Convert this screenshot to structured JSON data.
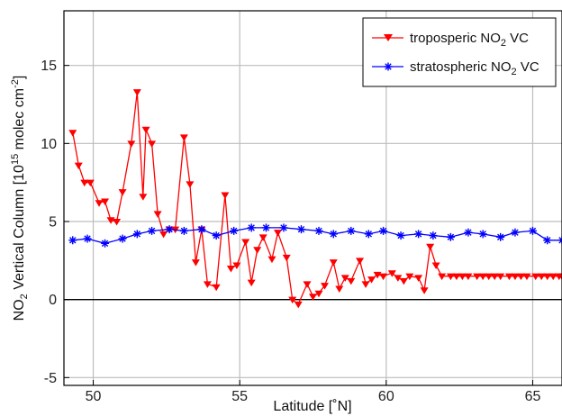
{
  "chart_data": {
    "type": "line",
    "title": "",
    "xlabel": "Latitude [˚N]",
    "ylabel": "NO2 Vertical Column [10^15 molec cm-2]",
    "xlim": [
      49,
      66
    ],
    "ylim": [
      -5.5,
      18.5
    ],
    "x_ticks": [
      50,
      55,
      60,
      65
    ],
    "y_ticks": [
      -5,
      0,
      5,
      10,
      15
    ],
    "grid": true,
    "zero_line": true,
    "legend_position": "top-right",
    "series": [
      {
        "name": "tropospheric NO2 VC",
        "color": "#ff0000",
        "marker": "triangle-down",
        "x": [
          49.3,
          49.5,
          49.7,
          49.9,
          50.2,
          50.4,
          50.6,
          50.8,
          51.0,
          51.3,
          51.5,
          51.7,
          51.8,
          52.0,
          52.2,
          52.4,
          52.6,
          52.8,
          53.1,
          53.3,
          53.5,
          53.7,
          53.9,
          54.2,
          54.5,
          54.7,
          54.9,
          55.2,
          55.4,
          55.6,
          55.8,
          56.1,
          56.3,
          56.6,
          56.8,
          57.0,
          57.3,
          57.5,
          57.7,
          57.9,
          58.2,
          58.4,
          58.6,
          58.8,
          59.1,
          59.3,
          59.5,
          59.7,
          59.9,
          60.2,
          60.4,
          60.6,
          60.8,
          61.1,
          61.3,
          61.5,
          61.7,
          61.9,
          62.2,
          62.4,
          62.6,
          62.8,
          63.1,
          63.3,
          63.5,
          63.7,
          63.9,
          64.2,
          64.4,
          64.6,
          64.8,
          65.1,
          65.3,
          65.5,
          65.7,
          65.9,
          66.0
        ],
        "y": [
          10.7,
          8.6,
          7.5,
          7.5,
          6.2,
          6.3,
          5.1,
          5.0,
          6.9,
          10.0,
          13.3,
          6.6,
          10.9,
          10.0,
          5.5,
          4.2,
          4.5,
          4.5,
          10.4,
          7.4,
          2.4,
          4.5,
          1.0,
          0.8,
          6.7,
          2.0,
          2.2,
          3.7,
          1.1,
          3.2,
          4.0,
          2.6,
          4.3,
          2.7,
          0.0,
          -0.3,
          1.0,
          0.2,
          0.4,
          0.9,
          2.4,
          0.7,
          1.4,
          1.2,
          2.5,
          1.0,
          1.3,
          1.6,
          1.5,
          1.7,
          1.4,
          1.2,
          1.5,
          1.4,
          0.6,
          3.4,
          2.2,
          1.5,
          1.5,
          1.5,
          1.5,
          1.5,
          1.5,
          1.5,
          1.5,
          1.5,
          1.5,
          1.5,
          1.5,
          1.5,
          1.5,
          1.5,
          1.5,
          1.5,
          1.5,
          1.5,
          1.5
        ]
      },
      {
        "name": "stratospheric NO2 VC",
        "color": "#0000ff",
        "marker": "asterisk",
        "x": [
          49.3,
          49.8,
          50.4,
          51.0,
          51.5,
          52.0,
          52.6,
          53.1,
          53.7,
          54.2,
          54.8,
          55.4,
          55.9,
          56.5,
          57.1,
          57.7,
          58.2,
          58.8,
          59.4,
          59.9,
          60.5,
          61.1,
          61.6,
          62.2,
          62.8,
          63.3,
          63.9,
          64.4,
          65.0,
          65.5,
          66.0
        ],
        "y": [
          3.8,
          3.9,
          3.6,
          3.9,
          4.2,
          4.4,
          4.5,
          4.4,
          4.5,
          4.1,
          4.4,
          4.6,
          4.6,
          4.6,
          4.5,
          4.4,
          4.2,
          4.4,
          4.2,
          4.4,
          4.1,
          4.2,
          4.1,
          4.0,
          4.3,
          4.2,
          4.0,
          4.3,
          4.4,
          3.8,
          3.8
        ]
      }
    ]
  },
  "legend": {
    "trop_prefix": "troposperic NO",
    "trop_sub": "2",
    "trop_suffix": " VC",
    "strat_prefix": "stratospheric NO",
    "strat_sub": "2",
    "strat_suffix": " VC"
  },
  "axes": {
    "xlabel": "Latitude [˚N]",
    "ylabel_prefix": "NO",
    "ylabel_sub": "2",
    "ylabel_mid": " Vertical Column [10",
    "ylabel_sup1": "15",
    "ylabel_mid2": " molec cm",
    "ylabel_sup2": "-2",
    "ylabel_end": "]"
  }
}
